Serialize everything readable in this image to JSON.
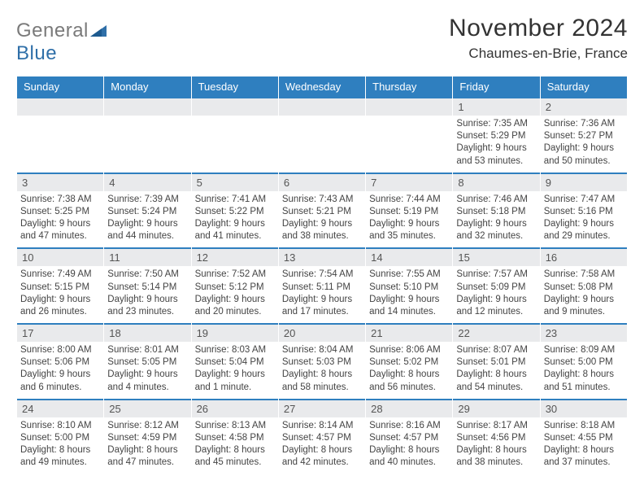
{
  "colors": {
    "header_bg": "#2f7fbf",
    "header_text": "#ffffff",
    "daynum_bg": "#e9eaec",
    "daynum_border": "#2f7fbf",
    "body_text": "#444444",
    "page_bg": "#ffffff",
    "logo_gray": "#7a7a7a",
    "logo_blue": "#2f6fa8"
  },
  "logo": {
    "word1": "General",
    "word2": "Blue"
  },
  "title": "November 2024",
  "location": "Chaumes-en-Brie, France",
  "weekdays": [
    "Sunday",
    "Monday",
    "Tuesday",
    "Wednesday",
    "Thursday",
    "Friday",
    "Saturday"
  ],
  "weeks": [
    [
      {
        "n": "",
        "sr": "",
        "ss": "",
        "dl": ""
      },
      {
        "n": "",
        "sr": "",
        "ss": "",
        "dl": ""
      },
      {
        "n": "",
        "sr": "",
        "ss": "",
        "dl": ""
      },
      {
        "n": "",
        "sr": "",
        "ss": "",
        "dl": ""
      },
      {
        "n": "",
        "sr": "",
        "ss": "",
        "dl": ""
      },
      {
        "n": "1",
        "sr": "Sunrise: 7:35 AM",
        "ss": "Sunset: 5:29 PM",
        "dl": "Daylight: 9 hours and 53 minutes."
      },
      {
        "n": "2",
        "sr": "Sunrise: 7:36 AM",
        "ss": "Sunset: 5:27 PM",
        "dl": "Daylight: 9 hours and 50 minutes."
      }
    ],
    [
      {
        "n": "3",
        "sr": "Sunrise: 7:38 AM",
        "ss": "Sunset: 5:25 PM",
        "dl": "Daylight: 9 hours and 47 minutes."
      },
      {
        "n": "4",
        "sr": "Sunrise: 7:39 AM",
        "ss": "Sunset: 5:24 PM",
        "dl": "Daylight: 9 hours and 44 minutes."
      },
      {
        "n": "5",
        "sr": "Sunrise: 7:41 AM",
        "ss": "Sunset: 5:22 PM",
        "dl": "Daylight: 9 hours and 41 minutes."
      },
      {
        "n": "6",
        "sr": "Sunrise: 7:43 AM",
        "ss": "Sunset: 5:21 PM",
        "dl": "Daylight: 9 hours and 38 minutes."
      },
      {
        "n": "7",
        "sr": "Sunrise: 7:44 AM",
        "ss": "Sunset: 5:19 PM",
        "dl": "Daylight: 9 hours and 35 minutes."
      },
      {
        "n": "8",
        "sr": "Sunrise: 7:46 AM",
        "ss": "Sunset: 5:18 PM",
        "dl": "Daylight: 9 hours and 32 minutes."
      },
      {
        "n": "9",
        "sr": "Sunrise: 7:47 AM",
        "ss": "Sunset: 5:16 PM",
        "dl": "Daylight: 9 hours and 29 minutes."
      }
    ],
    [
      {
        "n": "10",
        "sr": "Sunrise: 7:49 AM",
        "ss": "Sunset: 5:15 PM",
        "dl": "Daylight: 9 hours and 26 minutes."
      },
      {
        "n": "11",
        "sr": "Sunrise: 7:50 AM",
        "ss": "Sunset: 5:14 PM",
        "dl": "Daylight: 9 hours and 23 minutes."
      },
      {
        "n": "12",
        "sr": "Sunrise: 7:52 AM",
        "ss": "Sunset: 5:12 PM",
        "dl": "Daylight: 9 hours and 20 minutes."
      },
      {
        "n": "13",
        "sr": "Sunrise: 7:54 AM",
        "ss": "Sunset: 5:11 PM",
        "dl": "Daylight: 9 hours and 17 minutes."
      },
      {
        "n": "14",
        "sr": "Sunrise: 7:55 AM",
        "ss": "Sunset: 5:10 PM",
        "dl": "Daylight: 9 hours and 14 minutes."
      },
      {
        "n": "15",
        "sr": "Sunrise: 7:57 AM",
        "ss": "Sunset: 5:09 PM",
        "dl": "Daylight: 9 hours and 12 minutes."
      },
      {
        "n": "16",
        "sr": "Sunrise: 7:58 AM",
        "ss": "Sunset: 5:08 PM",
        "dl": "Daylight: 9 hours and 9 minutes."
      }
    ],
    [
      {
        "n": "17",
        "sr": "Sunrise: 8:00 AM",
        "ss": "Sunset: 5:06 PM",
        "dl": "Daylight: 9 hours and 6 minutes."
      },
      {
        "n": "18",
        "sr": "Sunrise: 8:01 AM",
        "ss": "Sunset: 5:05 PM",
        "dl": "Daylight: 9 hours and 4 minutes."
      },
      {
        "n": "19",
        "sr": "Sunrise: 8:03 AM",
        "ss": "Sunset: 5:04 PM",
        "dl": "Daylight: 9 hours and 1 minute."
      },
      {
        "n": "20",
        "sr": "Sunrise: 8:04 AM",
        "ss": "Sunset: 5:03 PM",
        "dl": "Daylight: 8 hours and 58 minutes."
      },
      {
        "n": "21",
        "sr": "Sunrise: 8:06 AM",
        "ss": "Sunset: 5:02 PM",
        "dl": "Daylight: 8 hours and 56 minutes."
      },
      {
        "n": "22",
        "sr": "Sunrise: 8:07 AM",
        "ss": "Sunset: 5:01 PM",
        "dl": "Daylight: 8 hours and 54 minutes."
      },
      {
        "n": "23",
        "sr": "Sunrise: 8:09 AM",
        "ss": "Sunset: 5:00 PM",
        "dl": "Daylight: 8 hours and 51 minutes."
      }
    ],
    [
      {
        "n": "24",
        "sr": "Sunrise: 8:10 AM",
        "ss": "Sunset: 5:00 PM",
        "dl": "Daylight: 8 hours and 49 minutes."
      },
      {
        "n": "25",
        "sr": "Sunrise: 8:12 AM",
        "ss": "Sunset: 4:59 PM",
        "dl": "Daylight: 8 hours and 47 minutes."
      },
      {
        "n": "26",
        "sr": "Sunrise: 8:13 AM",
        "ss": "Sunset: 4:58 PM",
        "dl": "Daylight: 8 hours and 45 minutes."
      },
      {
        "n": "27",
        "sr": "Sunrise: 8:14 AM",
        "ss": "Sunset: 4:57 PM",
        "dl": "Daylight: 8 hours and 42 minutes."
      },
      {
        "n": "28",
        "sr": "Sunrise: 8:16 AM",
        "ss": "Sunset: 4:57 PM",
        "dl": "Daylight: 8 hours and 40 minutes."
      },
      {
        "n": "29",
        "sr": "Sunrise: 8:17 AM",
        "ss": "Sunset: 4:56 PM",
        "dl": "Daylight: 8 hours and 38 minutes."
      },
      {
        "n": "30",
        "sr": "Sunrise: 8:18 AM",
        "ss": "Sunset: 4:55 PM",
        "dl": "Daylight: 8 hours and 37 minutes."
      }
    ]
  ]
}
